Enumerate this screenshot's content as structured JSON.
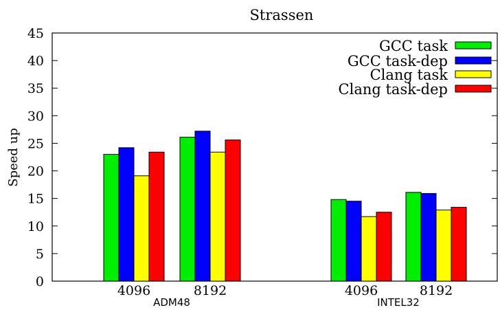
{
  "chart_data": {
    "type": "bar",
    "title": "Strassen",
    "xlabel": "",
    "ylabel": "Speed up",
    "ylim": [
      0,
      45
    ],
    "yticks": [
      0,
      5,
      10,
      15,
      20,
      25,
      30,
      35,
      40,
      45
    ],
    "grid": false,
    "legend_position": "top-right",
    "groups": [
      {
        "name": "ADM48",
        "categories": [
          "4096",
          "8192"
        ]
      },
      {
        "name": "INTEL32",
        "categories": [
          "4096",
          "8192"
        ]
      }
    ],
    "series": [
      {
        "name": "GCC task",
        "color": "#00ee00",
        "values": [
          23.0,
          26.1,
          14.8,
          16.1
        ]
      },
      {
        "name": "GCC task-dep",
        "color": "#0000ff",
        "values": [
          24.2,
          27.2,
          14.5,
          15.9
        ]
      },
      {
        "name": "Clang task",
        "color": "#ffff00",
        "values": [
          19.1,
          23.4,
          11.7,
          12.9
        ]
      },
      {
        "name": "Clang task-dep",
        "color": "#ff0000",
        "values": [
          23.4,
          25.6,
          12.5,
          13.4
        ]
      }
    ]
  }
}
